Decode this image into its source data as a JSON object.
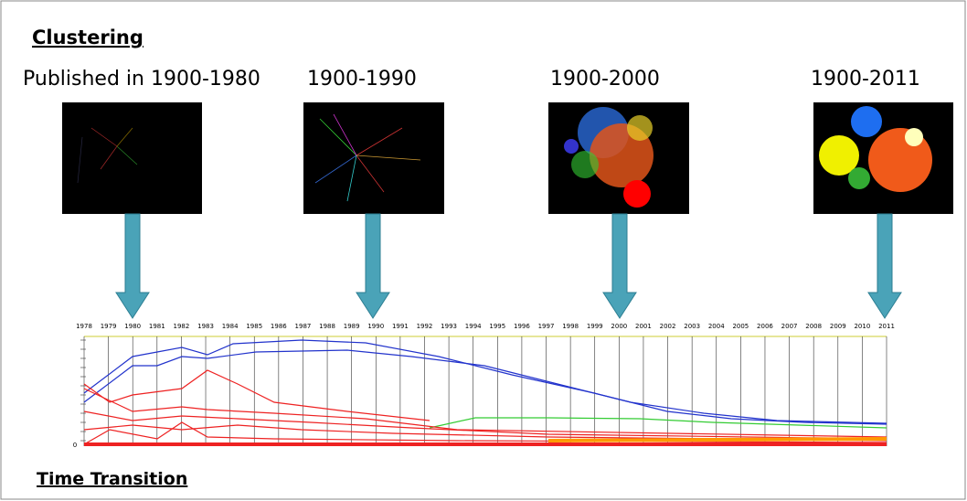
{
  "title": "Clustering",
  "snapshots": [
    {
      "label": "Published in 1900-1980"
    },
    {
      "label": "1900-1990"
    },
    {
      "label": "1900-2000"
    },
    {
      "label": "1900-2011"
    }
  ],
  "timeline": {
    "years": [
      "1978",
      "1979",
      "1980",
      "1981",
      "1982",
      "1983",
      "1984",
      "1985",
      "1986",
      "1987",
      "1988",
      "1989",
      "1990",
      "1991",
      "1992",
      "1993",
      "1994",
      "1995",
      "1996",
      "1997",
      "1998",
      "1999",
      "2000",
      "2001",
      "2002",
      "2003",
      "2004",
      "2005",
      "2006",
      "2007",
      "2008",
      "2009",
      "2010",
      "2011"
    ],
    "zero_label": "0",
    "caption": "Time Transition"
  }
}
